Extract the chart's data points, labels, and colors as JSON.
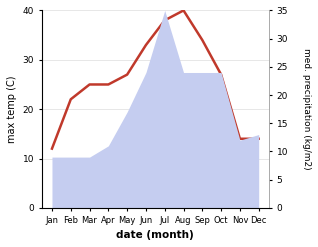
{
  "months": [
    "Jan",
    "Feb",
    "Mar",
    "Apr",
    "May",
    "Jun",
    "Jul",
    "Aug",
    "Sep",
    "Oct",
    "Nov",
    "Dec"
  ],
  "max_temp": [
    12,
    22,
    25,
    25,
    27,
    33,
    38,
    40,
    34,
    27,
    14,
    14
  ],
  "precipitation": [
    9,
    9,
    9,
    11,
    17,
    24,
    35,
    24,
    24,
    24,
    12,
    13
  ],
  "temp_color": "#c0392b",
  "precip_color": "#c5cdf0",
  "ylabel_left": "max temp (C)",
  "ylabel_right": "med. precipitation (kg/m2)",
  "xlabel": "date (month)",
  "ylim_left": [
    0,
    40
  ],
  "ylim_right": [
    0,
    35
  ],
  "yticks_left": [
    0,
    10,
    20,
    30,
    40
  ],
  "yticks_right": [
    0,
    5,
    10,
    15,
    20,
    25,
    30,
    35
  ],
  "bg_color": "#ffffff",
  "temp_linewidth": 1.8
}
